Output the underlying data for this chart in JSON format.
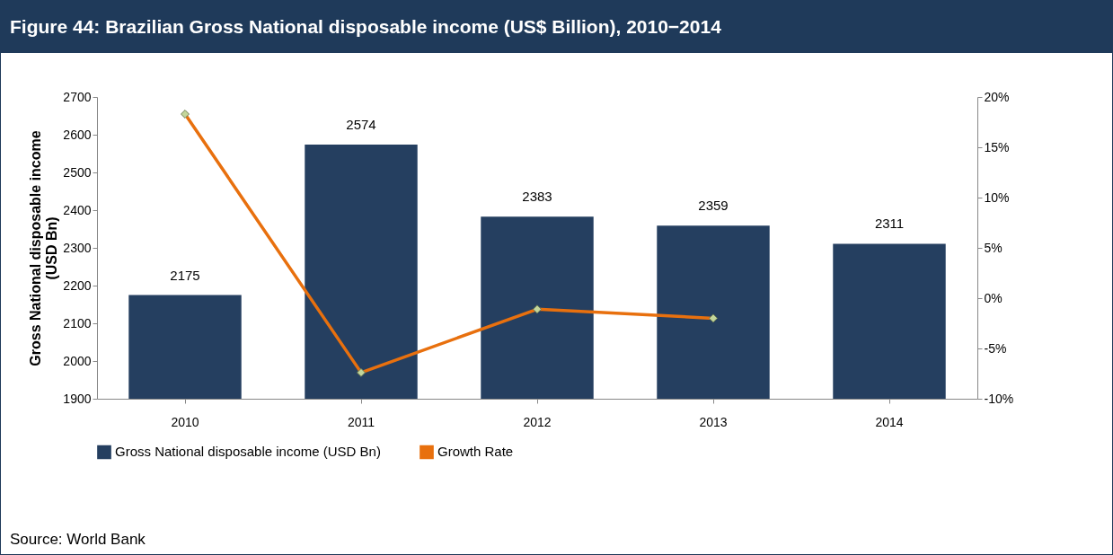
{
  "chart_data": {
    "type": "bar",
    "title": "Figure 44: Brazilian Gross National disposable income (US$ Billion), 2010−2014",
    "categories": [
      "2010",
      "2011",
      "2012",
      "2013",
      "2014"
    ],
    "series": [
      {
        "name": "Gross National disposable income (USD Bn)",
        "color": "#253f60",
        "values": [
          2175,
          2574,
          2383,
          2359,
          2311
        ],
        "value_labels": [
          "2175",
          "2574",
          "2383",
          "2359",
          "2311"
        ]
      },
      {
        "name": "Growth Rate",
        "type": "line",
        "axis": "y2",
        "color": "#e8700e",
        "marker": "diamond",
        "values": [
          18.3,
          -7.4,
          -1.1,
          -2.0,
          null
        ]
      }
    ],
    "ylabel": "Gross National disposable income (USD Bn)",
    "ylim": [
      1900,
      2700
    ],
    "yticks": [
      1900,
      2000,
      2100,
      2200,
      2300,
      2400,
      2500,
      2600,
      2700
    ],
    "y2lim": [
      -10,
      20
    ],
    "y2ticks": [
      {
        "value": -10,
        "label": "-10%"
      },
      {
        "value": -5,
        "label": "-5%"
      },
      {
        "value": 0,
        "label": "0%"
      },
      {
        "value": 5,
        "label": "5%"
      },
      {
        "value": 10,
        "label": "10%"
      },
      {
        "value": 15,
        "label": "15%"
      },
      {
        "value": 20,
        "label": "20%"
      }
    ],
    "grid": false,
    "legend": "bottom",
    "annotations": [
      "Source: World Bank"
    ]
  }
}
